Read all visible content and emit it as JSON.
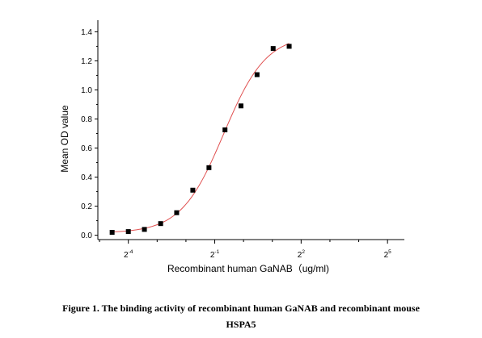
{
  "chart_data": {
    "type": "scatter",
    "title": "",
    "xlabel": "Recombinant human GaNAB（ug/ml)",
    "ylabel": "Mean OD value",
    "x_scale": "log2",
    "xlim": [
      0.03,
      48
    ],
    "ylim": [
      -0.03,
      1.48
    ],
    "x_ticks": [
      {
        "value": 0.0625,
        "base": "2",
        "exponent": "-4"
      },
      {
        "value": 0.5,
        "base": "2",
        "exponent": "-1"
      },
      {
        "value": 4,
        "base": "2",
        "exponent": "2"
      },
      {
        "value": 32,
        "base": "2",
        "exponent": "5"
      }
    ],
    "y_ticks": [
      "0.0",
      "0.2",
      "0.4",
      "0.6",
      "0.8",
      "1.0",
      "1.2",
      "1.4"
    ],
    "y_tick_values": [
      0.0,
      0.2,
      0.4,
      0.6,
      0.8,
      1.0,
      1.2,
      1.4
    ],
    "grid": false,
    "legend": "none",
    "series": [
      {
        "values": [
          {
            "x": 0.0423,
            "y": 0.02
          },
          {
            "x": 0.0625,
            "y": 0.025
          },
          {
            "x": 0.092,
            "y": 0.04
          },
          {
            "x": 0.136,
            "y": 0.08
          },
          {
            "x": 0.2,
            "y": 0.155
          },
          {
            "x": 0.295,
            "y": 0.31
          },
          {
            "x": 0.435,
            "y": 0.465
          },
          {
            "x": 0.64,
            "y": 0.725
          },
          {
            "x": 0.94,
            "y": 0.89
          },
          {
            "x": 1.385,
            "y": 1.105
          },
          {
            "x": 2.04,
            "y": 1.285
          },
          {
            "x": 3.0,
            "y": 1.3
          }
        ]
      }
    ],
    "fit_curve": {
      "type": "4PL",
      "bottom": 0.015,
      "top": 1.38,
      "ec50": 0.62,
      "hill": 1.95
    },
    "colors": {
      "points": "#000000",
      "fit_line": "#e05050",
      "axes": "#000000"
    }
  },
  "caption": {
    "line1": "Figure 1. The binding activity of recombinant human GaNAB and recombinant mouse",
    "line2": "HSPA5"
  }
}
